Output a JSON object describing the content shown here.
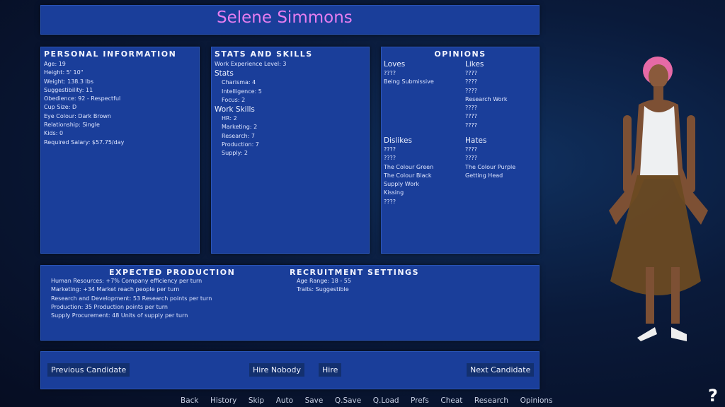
{
  "name": "Selene Simmons",
  "personal": {
    "heading": "Personal Information",
    "lines": [
      "Age: 19",
      "Height: 5' 10\"",
      "Weight: 138.3 lbs",
      "Suggestibility: 11",
      "Obedience: 92 - Respectful",
      "Cup Size: D",
      "Eye Colour: Dark Brown",
      "Relationship: Single",
      "Kids: 0",
      "Required Salary: $57.75/day"
    ]
  },
  "stats": {
    "heading": "Stats and Skills",
    "experience": "Work Experience Level: 3",
    "stats_label": "Stats",
    "stats": [
      "Charisma: 4",
      "Intelligence: 5",
      "Focus: 2"
    ],
    "skills_label": "Work Skills",
    "skills": [
      "HR: 2",
      "Marketing: 2",
      "Research: 7",
      "Production: 7",
      "Supply: 2"
    ]
  },
  "opinions": {
    "heading": "Opinions",
    "loves": {
      "label": "Loves",
      "items": [
        "????",
        "Being Submissive"
      ]
    },
    "likes": {
      "label": "Likes",
      "items": [
        "????",
        "????",
        "????",
        "Research Work",
        "????",
        "????",
        "????"
      ]
    },
    "dislikes": {
      "label": "Dislikes",
      "items": [
        "????",
        "????",
        "The Colour Green",
        "The Colour Black",
        "Supply Work",
        "Kissing",
        "????"
      ]
    },
    "hates": {
      "label": "Hates",
      "items": [
        "????",
        "????",
        "The Colour Purple",
        "Getting Head"
      ]
    }
  },
  "production": {
    "heading": "Expected Production",
    "lines": [
      "Human Resources: +7% Company efficiency per turn",
      "Marketing: +34 Market reach people per turn",
      "Research and Development: 53 Research points per turn",
      "Production: 35 Production points per turn",
      "Supply Procurement: 48 Units of supply per turn"
    ]
  },
  "recruitment": {
    "heading": "Recruitment Settings",
    "lines": [
      "Age Range: 18 - 55",
      "Traits: Suggestible"
    ]
  },
  "buttons": {
    "previous": "Previous Candidate",
    "hire_nobody": "Hire Nobody",
    "hire": "Hire",
    "next": "Next Candidate"
  },
  "nav": [
    "Back",
    "History",
    "Skip",
    "Auto",
    "Save",
    "Q.Save",
    "Q.Load",
    "Prefs",
    "Cheat",
    "Research",
    "Opinions"
  ],
  "help": "?"
}
